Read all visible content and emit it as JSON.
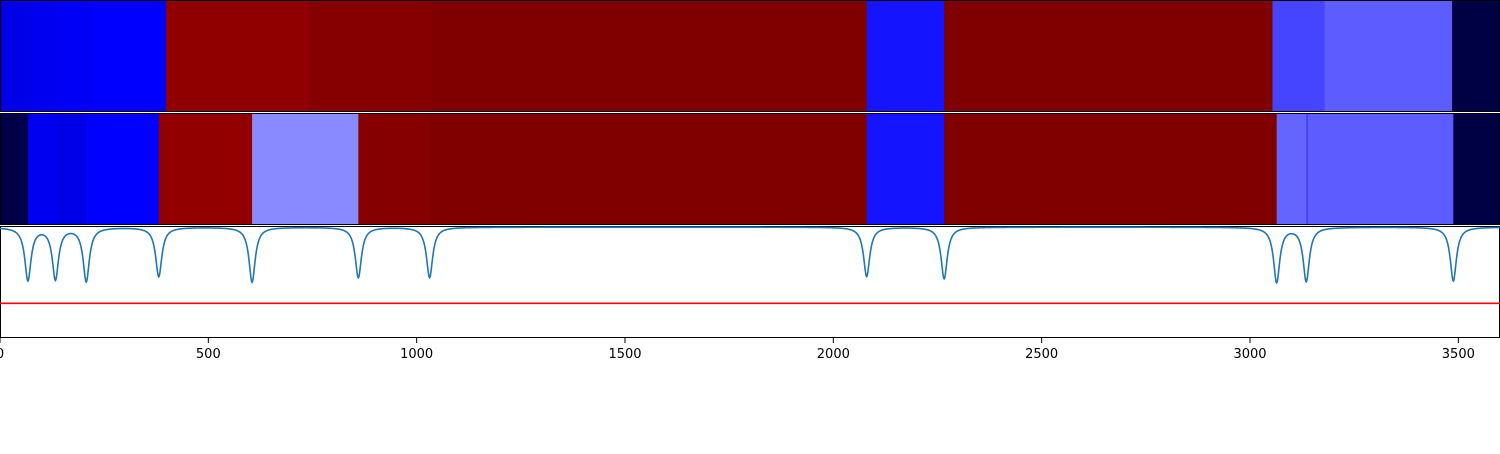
{
  "chart_data": [
    {
      "type": "heatmap",
      "title": "",
      "xlim": [
        0,
        3600
      ],
      "segments": [
        {
          "x0": 0,
          "x1": 75,
          "color": "#0000e8"
        },
        {
          "x0": 75,
          "x1": 140,
          "color": "#0000f0"
        },
        {
          "x0": 140,
          "x1": 218,
          "color": "#0000f6"
        },
        {
          "x0": 218,
          "x1": 398,
          "color": "#0000ff"
        },
        {
          "x0": 398,
          "x1": 740,
          "color": "#910000"
        },
        {
          "x0": 740,
          "x1": 1038,
          "color": "#870000"
        },
        {
          "x0": 1038,
          "x1": 2080,
          "color": "#800000"
        },
        {
          "x0": 2080,
          "x1": 2266,
          "color": "#1414ff"
        },
        {
          "x0": 2266,
          "x1": 3054,
          "color": "#800000"
        },
        {
          "x0": 3054,
          "x1": 3179,
          "color": "#4545ff"
        },
        {
          "x0": 3179,
          "x1": 3485,
          "color": "#5c5cff"
        },
        {
          "x0": 3485,
          "x1": 3600,
          "color": "#000044"
        }
      ]
    },
    {
      "type": "heatmap",
      "title": "",
      "xlim": [
        0,
        3600
      ],
      "segments": [
        {
          "x0": 0,
          "x1": 67,
          "color": "#000048"
        },
        {
          "x0": 67,
          "x1": 133,
          "color": "#0000f0"
        },
        {
          "x0": 133,
          "x1": 207,
          "color": "#0000e8"
        },
        {
          "x0": 207,
          "x1": 381,
          "color": "#0000ff"
        },
        {
          "x0": 381,
          "x1": 605,
          "color": "#920000"
        },
        {
          "x0": 605,
          "x1": 860,
          "color": "#8a8aff"
        },
        {
          "x0": 860,
          "x1": 1031,
          "color": "#860000"
        },
        {
          "x0": 1031,
          "x1": 2080,
          "color": "#800000"
        },
        {
          "x0": 2080,
          "x1": 2266,
          "color": "#1414ff"
        },
        {
          "x0": 2266,
          "x1": 3064,
          "color": "#800000"
        },
        {
          "x0": 3064,
          "x1": 3135,
          "color": "#6464ff"
        },
        {
          "x0": 3135,
          "x1": 3488,
          "color": "#5c5cff"
        },
        {
          "x0": 3488,
          "x1": 3600,
          "color": "#000044"
        }
      ],
      "markers": [
        {
          "x": 3137,
          "color": "#3c3cff"
        }
      ]
    },
    {
      "type": "line",
      "title": "",
      "xlabel": "",
      "ylabel": "",
      "xlim": [
        0,
        3600
      ],
      "xticks": [
        0,
        500,
        1000,
        1500,
        2000,
        2500,
        3000,
        3500
      ],
      "ylim": [
        0,
        1
      ],
      "series": [
        {
          "color": "#1f77b4",
          "baseline": 0.99,
          "dips": [
            {
              "x": 67,
              "y": 0.52
            },
            {
              "x": 133,
              "y": 0.53
            },
            {
              "x": 207,
              "y": 0.51
            },
            {
              "x": 381,
              "y": 0.55
            },
            {
              "x": 605,
              "y": 0.5
            },
            {
              "x": 860,
              "y": 0.54
            },
            {
              "x": 1031,
              "y": 0.54
            },
            {
              "x": 2080,
              "y": 0.55
            },
            {
              "x": 2266,
              "y": 0.53
            },
            {
              "x": 3064,
              "y": 0.5
            },
            {
              "x": 3135,
              "y": 0.51
            },
            {
              "x": 3488,
              "y": 0.51
            }
          ]
        }
      ],
      "hline": {
        "y": 0.31,
        "color": "#ff0000"
      }
    }
  ]
}
